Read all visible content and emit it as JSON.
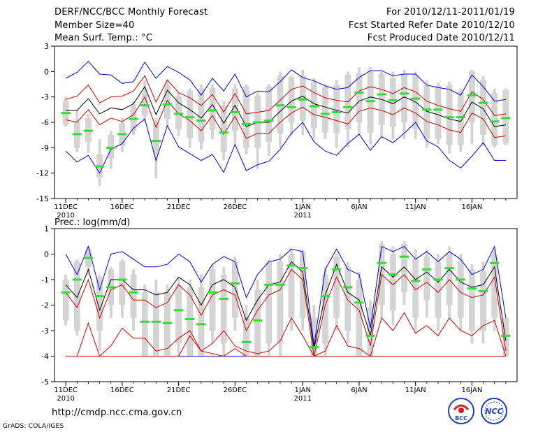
{
  "header": {
    "title": "DERF/NCC/BCC Monthly Forecast",
    "member_size": "Member Size=40",
    "variable": "Mean Surf. Temp.: °C",
    "period": "For 2010/12/11-2011/01/19",
    "started": "Fcst Started Refer Date 2010/12/10",
    "produced": "Fcst Produced Date 2010/12/11"
  },
  "footer": {
    "url": "http://cmdp.ncc.cma.gov.cn",
    "grads": "GrADS: COLA/IGES"
  },
  "logos": {
    "bcc": "BCC",
    "ncc": "NCC"
  },
  "colors": {
    "box": "#d4d4d4",
    "median": "#33dd33",
    "mean": "#000000",
    "inner": "#cc0000",
    "outer": "#0000cc"
  },
  "chart_data": [
    {
      "type": "box-line",
      "title": "Mean Surf. Temp.: °C",
      "ylabel": "",
      "ylim": [
        -15,
        3
      ],
      "yticks": [
        3,
        0,
        -3,
        -6,
        -9,
        -12,
        -15
      ],
      "x_tick_labels": [
        {
          "day": 1,
          "label": "11DEC",
          "sub": "2010"
        },
        {
          "day": 6,
          "label": "16DEC",
          "sub": ""
        },
        {
          "day": 11,
          "label": "21DEC",
          "sub": ""
        },
        {
          "day": 16,
          "label": "26DEC",
          "sub": ""
        },
        {
          "day": 22,
          "label": "1JAN",
          "sub": "2011"
        },
        {
          "day": 27,
          "label": "6JAN",
          "sub": ""
        },
        {
          "day": 32,
          "label": "11JAN",
          "sub": ""
        },
        {
          "day": 37,
          "label": "16JAN",
          "sub": ""
        }
      ],
      "days": [
        1,
        2,
        3,
        4,
        5,
        6,
        7,
        8,
        9,
        10,
        11,
        12,
        13,
        14,
        15,
        16,
        17,
        18,
        19,
        20,
        21,
        22,
        23,
        24,
        25,
        26,
        27,
        28,
        29,
        30,
        31,
        32,
        33,
        34,
        35,
        36,
        37,
        38,
        39,
        40
      ],
      "median": [
        -4.9,
        -7.4,
        -7.0,
        -11.2,
        -9.0,
        -7.4,
        -5.6,
        -4.0,
        -8.2,
        -3.9,
        -5.0,
        -5.4,
        -5.8,
        -4.6,
        -7.2,
        -4.8,
        -6.2,
        -6.0,
        -5.8,
        -4.0,
        -4.2,
        -3.3,
        -4.1,
        -5.0,
        -4.8,
        -4.2,
        -2.5,
        -3.5,
        -2.7,
        -3.4,
        -2.6,
        -3.2,
        -4.5,
        -4.5,
        -5.4,
        -5.4,
        -2.8,
        -3.7,
        -5.9,
        -5.5
      ],
      "box_low": [
        -6.3,
        -9.0,
        -8.3,
        -12.5,
        -10.3,
        -8.8,
        -7.0,
        -5.2,
        -9.8,
        -5.6,
        -6.8,
        -7.8,
        -8.3,
        -6.9,
        -9.5,
        -7.0,
        -9.0,
        -9.0,
        -8.3,
        -7.3,
        -6.0,
        -5.8,
        -6.7,
        -7.2,
        -7.3,
        -6.8,
        -6.0,
        -7.2,
        -6.3,
        -6.5,
        -6.0,
        -6.8,
        -8.0,
        -8.0,
        -8.7,
        -8.7,
        -6.0,
        -7.5,
        -8.7,
        -8.5
      ],
      "box_high": [
        -3.5,
        -5.9,
        -5.5,
        -9.8,
        -7.5,
        -6.1,
        -3.9,
        -2.5,
        -6.0,
        -1.5,
        -2.9,
        -2.3,
        -2.0,
        -1.9,
        -4.0,
        -2.0,
        -1.8,
        -2.9,
        -1.8,
        -0.5,
        -0.6,
        -0.5,
        -1.2,
        -1.8,
        -1.6,
        -0.4,
        -0.2,
        0.0,
        -0.3,
        -0.7,
        -0.3,
        -0.4,
        -1.6,
        -1.7,
        -1.6,
        -2.4,
        0.0,
        -1.0,
        -2.5,
        -2.2
      ],
      "whisker_low": [
        -6.5,
        -9.5,
        -9.6,
        -13.5,
        -11.5,
        -9.5,
        -7.5,
        -6.0,
        -12.6,
        -6.5,
        -7.6,
        -9.0,
        -9.2,
        -8.0,
        -10.5,
        -8.5,
        -9.8,
        -11.5,
        -10.0,
        -9.0,
        -7.5,
        -7.5,
        -8.0,
        -8.0,
        -9.0,
        -9.0,
        -7.5,
        -8.6,
        -7.8,
        -8.0,
        -8.0,
        -8.0,
        -9.0,
        -8.6,
        -9.7,
        -9.5,
        -8.5,
        -8.8,
        -9.0,
        -8.7
      ],
      "whisker_high": [
        -3.0,
        -4.5,
        -5.0,
        -8.0,
        -7.0,
        -5.5,
        -3.5,
        -1.0,
        -5.5,
        -1.0,
        -2.5,
        -2.0,
        -1.5,
        -1.5,
        -3.5,
        -1.5,
        -1.5,
        -2.5,
        -1.5,
        0.0,
        -0.5,
        0.2,
        -0.8,
        -1.5,
        -1.0,
        0.0,
        0.5,
        0.5,
        0.0,
        0.0,
        0.2,
        0.0,
        -1.0,
        -1.3,
        -1.2,
        -2.0,
        0.2,
        -0.5,
        -2.0,
        -2.0
      ],
      "mean": [
        -4.6,
        -4.6,
        -3.2,
        -5.0,
        -4.3,
        -4.5,
        -3.8,
        -1.8,
        -5.1,
        -2.2,
        -3.7,
        -4.5,
        -5.5,
        -3.9,
        -6.1,
        -4.0,
        -6.5,
        -6.0,
        -6.0,
        -4.7,
        -3.5,
        -2.9,
        -3.8,
        -4.2,
        -4.6,
        -4.9,
        -3.5,
        -3.0,
        -3.3,
        -3.8,
        -3.0,
        -3.6,
        -4.7,
        -5.1,
        -5.6,
        -5.9,
        -3.6,
        -4.4,
        -6.5,
        -6.3
      ],
      "inner_high": [
        -3.3,
        -2.9,
        -1.6,
        -3.7,
        -3.0,
        -2.9,
        -2.3,
        -0.5,
        -3.6,
        -1.0,
        -2.5,
        -3.1,
        -4.0,
        -2.7,
        -4.8,
        -2.6,
        -5.0,
        -4.8,
        -4.6,
        -3.4,
        -2.1,
        -1.7,
        -2.5,
        -3.1,
        -3.4,
        -3.6,
        -2.3,
        -1.8,
        -2.1,
        -2.6,
        -1.9,
        -2.4,
        -3.5,
        -4.0,
        -4.4,
        -4.7,
        -2.4,
        -3.3,
        -5.2,
        -5.0
      ],
      "inner_low": [
        -5.7,
        -6.0,
        -4.5,
        -6.3,
        -5.5,
        -5.9,
        -5.1,
        -3.0,
        -6.6,
        -3.4,
        -5.0,
        -5.8,
        -7.0,
        -5.2,
        -7.4,
        -5.3,
        -7.9,
        -7.3,
        -7.3,
        -6.0,
        -4.9,
        -4.2,
        -5.1,
        -5.4,
        -5.8,
        -6.2,
        -4.7,
        -4.3,
        -4.6,
        -5.1,
        -4.3,
        -4.9,
        -5.9,
        -6.3,
        -6.9,
        -7.2,
        -4.9,
        -5.6,
        -7.8,
        -7.6
      ],
      "outer_high": [
        -0.8,
        -0.1,
        1.2,
        -0.3,
        -0.4,
        -1.4,
        -1.2,
        1.1,
        -0.8,
        0.6,
        -0.1,
        -1.0,
        -2.8,
        -0.8,
        -2.3,
        -0.3,
        -3.0,
        -2.3,
        -2.4,
        -1.2,
        0.2,
        -0.7,
        -1.1,
        -1.7,
        -2.1,
        -1.9,
        -0.7,
        0.1,
        0.1,
        -0.5,
        -0.3,
        -0.3,
        -1.6,
        -1.9,
        -2.1,
        -2.8,
        -0.4,
        -1.8,
        -3.5,
        -3.3
      ],
      "outer_low": [
        -9.4,
        -10.7,
        -9.9,
        -12.0,
        -9.2,
        -8.5,
        -6.7,
        -5.6,
        -10.5,
        -6.4,
        -8.9,
        -9.7,
        -10.5,
        -9.8,
        -11.9,
        -8.6,
        -11.7,
        -11.0,
        -10.6,
        -9.2,
        -7.3,
        -6.0,
        -8.3,
        -9.4,
        -9.9,
        -8.5,
        -7.4,
        -9.3,
        -7.7,
        -8.4,
        -7.3,
        -6.0,
        -8.2,
        -8.9,
        -10.5,
        -11.4,
        -10.0,
        -8.4,
        -10.5,
        -10.5
      ]
    },
    {
      "type": "box-line",
      "title": "Prec.: log(mm/d)",
      "ylabel": "",
      "ylim": [
        -5,
        1
      ],
      "yticks": [
        1,
        0,
        -1,
        -2,
        -3,
        -4,
        -5
      ],
      "x_tick_labels": [
        {
          "day": 1,
          "label": "11DEC",
          "sub": "2010"
        },
        {
          "day": 6,
          "label": "16DEC",
          "sub": ""
        },
        {
          "day": 11,
          "label": "21DEC",
          "sub": ""
        },
        {
          "day": 16,
          "label": "26DEC",
          "sub": ""
        },
        {
          "day": 22,
          "label": "1JAN",
          "sub": "2011"
        },
        {
          "day": 27,
          "label": "6JAN",
          "sub": ""
        },
        {
          "day": 32,
          "label": "11JAN",
          "sub": ""
        },
        {
          "day": 37,
          "label": "16JAN",
          "sub": ""
        }
      ],
      "days": [
        1,
        2,
        3,
        4,
        5,
        6,
        7,
        8,
        9,
        10,
        11,
        12,
        13,
        14,
        15,
        16,
        17,
        18,
        19,
        20,
        21,
        22,
        23,
        24,
        25,
        26,
        27,
        28,
        29,
        30,
        31,
        32,
        33,
        34,
        35,
        36,
        37,
        38,
        39,
        40
      ],
      "median": [
        -1.5,
        -1.0,
        -0.15,
        -1.65,
        -1.3,
        -1.0,
        -1.5,
        -2.65,
        -2.65,
        -2.7,
        -2.2,
        -2.55,
        -2.75,
        -1.5,
        -1.75,
        -1.15,
        -3.45,
        -2.6,
        -1.2,
        -1.2,
        -0.45,
        -0.55,
        -3.65,
        -1.65,
        -0.6,
        -1.3,
        -1.9,
        -3.2,
        -0.35,
        -0.8,
        -0.1,
        -1.05,
        -0.6,
        -1.0,
        -0.55,
        -1.0,
        -1.35,
        -1.45,
        -0.35,
        -3.2
      ],
      "box_low": [
        -2.6,
        -3.0,
        -0.5,
        -3.0,
        -2.0,
        -2.0,
        -2.5,
        -4.0,
        -4.0,
        -4.0,
        -3.5,
        -4.0,
        -4.0,
        -3.0,
        -3.5,
        -2.5,
        -4.0,
        -4.0,
        -3.5,
        -3.5,
        -2.5,
        -2.5,
        -4.0,
        -3.5,
        -2.5,
        -3.0,
        -4.0,
        -4.0,
        -2.0,
        -2.2,
        -1.5,
        -2.5,
        -1.8,
        -2.5,
        -2.0,
        -2.5,
        -3.0,
        -3.0,
        -2.5,
        -4.0
      ],
      "box_high": [
        -1.0,
        -0.3,
        0.2,
        -0.9,
        -0.6,
        -0.3,
        -0.8,
        -1.5,
        -1.5,
        -1.5,
        -1.2,
        -1.3,
        -1.3,
        -0.6,
        -0.8,
        -0.3,
        -2.5,
        -1.4,
        -0.3,
        -0.3,
        0.0,
        0.1,
        -2.5,
        -0.8,
        -0.1,
        -0.5,
        -1.0,
        -2.1,
        0.4,
        0.0,
        0.4,
        -0.2,
        -0.1,
        -0.3,
        0.0,
        -0.3,
        -0.6,
        -0.7,
        0.0,
        -2.5
      ],
      "whisker_low": [
        -2.8,
        -3.2,
        -0.8,
        -3.8,
        -2.5,
        -2.5,
        -3.0,
        -4.0,
        -4.0,
        -4.0,
        -4.0,
        -4.0,
        -4.0,
        -3.5,
        -4.0,
        -3.0,
        -4.0,
        -4.0,
        -4.0,
        -4.0,
        -3.0,
        -3.0,
        -4.0,
        -4.0,
        -3.0,
        -3.5,
        -4.0,
        -4.0,
        -2.5,
        -2.8,
        -2.0,
        -3.0,
        -2.5,
        -3.0,
        -2.5,
        -3.0,
        -3.5,
        -3.5,
        -3.0,
        -4.0
      ],
      "whisker_high": [
        -0.8,
        -0.2,
        0.3,
        -0.8,
        -0.5,
        -0.2,
        -0.6,
        -1.2,
        -1.0,
        -1.2,
        -0.9,
        -1.0,
        -0.8,
        -0.4,
        -0.5,
        -0.1,
        -2.0,
        -1.0,
        -0.2,
        0.0,
        0.2,
        0.2,
        -2.0,
        -0.5,
        0.0,
        -0.3,
        -0.7,
        -1.8,
        0.5,
        0.3,
        0.5,
        0.2,
        0.2,
        0.0,
        0.3,
        0.0,
        -0.4,
        -0.3,
        0.2,
        -2.5
      ],
      "mean": [
        -1.2,
        -1.7,
        -0.6,
        -2.2,
        -1.0,
        -1.0,
        -1.4,
        -1.4,
        -1.6,
        -1.5,
        -0.9,
        -1.2,
        -2.0,
        -1.2,
        -1.0,
        -1.3,
        -2.6,
        -1.8,
        -1.2,
        -1.1,
        -0.3,
        -0.7,
        -3.7,
        -1.6,
        -0.4,
        -1.5,
        -1.8,
        -3.2,
        -0.5,
        -0.9,
        -0.5,
        -1.0,
        -0.7,
        -1.1,
        -0.6,
        -1.1,
        -1.3,
        -1.2,
        -0.5,
        -3.4
      ],
      "inner_high": [
        -1.5,
        -2.1,
        -1.0,
        -2.5,
        -1.4,
        -1.2,
        -1.8,
        -1.8,
        -2.1,
        -1.9,
        -1.2,
        -1.6,
        -2.4,
        -1.6,
        -1.4,
        -1.6,
        -3.0,
        -2.2,
        -1.6,
        -1.4,
        -0.6,
        -1.0,
        -4.0,
        -2.0,
        -0.9,
        -1.8,
        -2.2,
        -3.6,
        -0.8,
        -1.2,
        -0.8,
        -1.4,
        -1.1,
        -1.5,
        -1.0,
        -1.5,
        -1.7,
        -1.6,
        -0.9,
        -3.8
      ],
      "inner_low": [
        -4.0,
        -4.0,
        -2.7,
        -4.0,
        -3.6,
        -2.9,
        -3.3,
        -3.3,
        -3.8,
        -3.7,
        -3.3,
        -3.0,
        -3.8,
        -3.5,
        -3.0,
        -3.6,
        -3.8,
        -3.9,
        -3.8,
        -3.4,
        -2.5,
        -3.2,
        -4.0,
        -3.8,
        -2.8,
        -3.6,
        -3.7,
        -4.0,
        -2.5,
        -3.0,
        -2.3,
        -3.1,
        -2.8,
        -3.2,
        -2.5,
        -3.0,
        -3.2,
        -2.8,
        -2.6,
        -4.0
      ],
      "inner_bottom": [
        -4.0,
        -4.0,
        -4.0,
        -4.0,
        -4.0,
        -4.0,
        -4.0,
        -4.0,
        -4.0,
        -4.0,
        -4.0,
        -3.2,
        -3.8,
        -3.9,
        -4.0,
        -3.7,
        -4.0,
        -4.0,
        -4.0,
        -4.0,
        -4.0,
        -4.0,
        -4.0,
        -4.0,
        -4.0,
        -4.0,
        -4.0,
        -4.0,
        -4.0,
        -4.0,
        -4.0,
        -4.0,
        -4.0,
        -4.0,
        -4.0,
        -4.0,
        -4.0,
        -4.0,
        -4.0,
        -4.0
      ],
      "outer_high": [
        0.0,
        -0.8,
        0.3,
        -1.4,
        0.0,
        0.1,
        -0.2,
        -0.5,
        -0.5,
        -0.4,
        0.0,
        -0.3,
        -1.1,
        -0.4,
        -0.1,
        -0.3,
        -1.7,
        -0.8,
        -0.3,
        -0.2,
        0.2,
        0.1,
        -3.6,
        -0.6,
        0.2,
        -0.6,
        -0.8,
        -2.9,
        0.3,
        0.1,
        0.3,
        -0.2,
        0.1,
        -0.3,
        0.1,
        -0.2,
        -0.8,
        -0.6,
        0.3,
        -2.5
      ],
      "outer_low": [
        -4.0,
        -4.0,
        -4.0,
        -4.0,
        -4.0,
        -4.0,
        -4.0,
        -4.0,
        -4.0,
        -4.0,
        -4.0,
        -4.0,
        -4.0,
        -4.0,
        -4.0,
        -4.0,
        -4.0,
        -4.0,
        -4.0,
        -4.0,
        -4.0,
        -4.0,
        -4.0,
        -4.0,
        -4.0,
        -4.0,
        -4.0,
        -4.0,
        -4.0,
        -4.0,
        -4.0,
        -4.0,
        -4.0,
        -4.0,
        -4.0,
        -4.0,
        -4.0,
        -4.0,
        -4.0,
        -4.0
      ]
    }
  ]
}
